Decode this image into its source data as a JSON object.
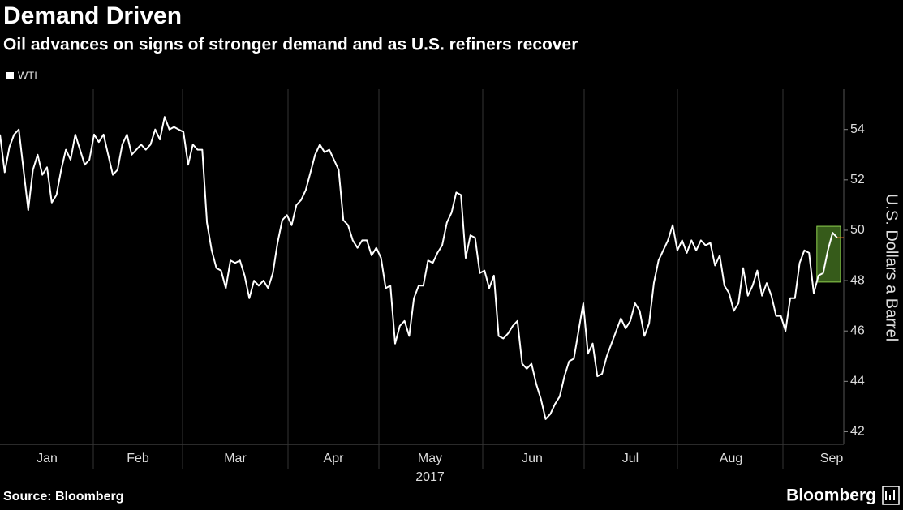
{
  "chart_data": {
    "type": "line",
    "title": "Demand Driven",
    "subtitle": "Oil advances on signs of stronger demand and as U.S. refiners recover",
    "months": [
      "Jan",
      "Feb",
      "Mar",
      "Apr",
      "May",
      "Jun",
      "Jul",
      "Aug",
      "Sep"
    ],
    "year_label": "2017",
    "y_label": "U.S. Dollars a Barrel",
    "series": [
      {
        "name": "WTI",
        "color": "#ffffff",
        "values": [
          53.8,
          52.3,
          53.3,
          53.8,
          54.0,
          52.4,
          50.8,
          52.4,
          53.0,
          52.2,
          52.5,
          51.1,
          51.4,
          52.4,
          53.2,
          52.8,
          53.8,
          53.2,
          52.6,
          52.8,
          53.8,
          53.5,
          53.8,
          53.0,
          52.2,
          52.4,
          53.4,
          53.8,
          53.0,
          53.2,
          53.4,
          53.2,
          53.4,
          54.0,
          53.6,
          54.5,
          54.0,
          54.1,
          54.0,
          53.9,
          52.6,
          53.4,
          53.2,
          53.2,
          50.3,
          49.2,
          48.5,
          48.4,
          47.7,
          48.8,
          48.7,
          48.8,
          48.2,
          47.3,
          48.0,
          47.8,
          48.0,
          47.7,
          48.3,
          49.5,
          50.4,
          50.6,
          50.2,
          51.0,
          51.2,
          51.6,
          52.3,
          53.0,
          53.4,
          53.1,
          53.2,
          52.8,
          52.4,
          50.4,
          50.2,
          49.6,
          49.3,
          49.6,
          49.6,
          49.0,
          49.3,
          48.9,
          47.7,
          47.8,
          45.5,
          46.2,
          46.4,
          45.8,
          47.3,
          47.8,
          47.8,
          48.8,
          48.7,
          49.1,
          49.4,
          50.3,
          50.7,
          51.5,
          51.4,
          48.9,
          49.8,
          49.7,
          48.3,
          48.4,
          47.7,
          48.2,
          45.8,
          45.7,
          45.9,
          46.2,
          46.4,
          44.7,
          44.5,
          44.7,
          43.9,
          43.3,
          42.5,
          42.7,
          43.1,
          43.4,
          44.2,
          44.8,
          44.9,
          46.0,
          47.1,
          45.1,
          45.5,
          44.2,
          44.3,
          45.0,
          45.5,
          46.0,
          46.5,
          46.1,
          46.4,
          47.1,
          46.8,
          45.8,
          46.3,
          47.9,
          48.8,
          49.2,
          49.6,
          50.2,
          49.2,
          49.6,
          49.1,
          49.6,
          49.2,
          49.6,
          49.4,
          49.5,
          48.6,
          49.0,
          47.8,
          47.5,
          46.8,
          47.1,
          48.5,
          47.4,
          47.8,
          48.4,
          47.4,
          47.9,
          47.4,
          46.6,
          46.6,
          46.0,
          47.3,
          47.3,
          48.7,
          49.2,
          49.1,
          47.5,
          48.2,
          48.3,
          49.2,
          49.9,
          49.7
        ]
      }
    ],
    "ylim": [
      41.5,
      55.6
    ],
    "yticks": [
      42,
      44,
      46,
      48,
      50,
      52,
      54
    ],
    "grid": false,
    "source": "Source: Bloomberg",
    "brand": "Bloomberg"
  }
}
